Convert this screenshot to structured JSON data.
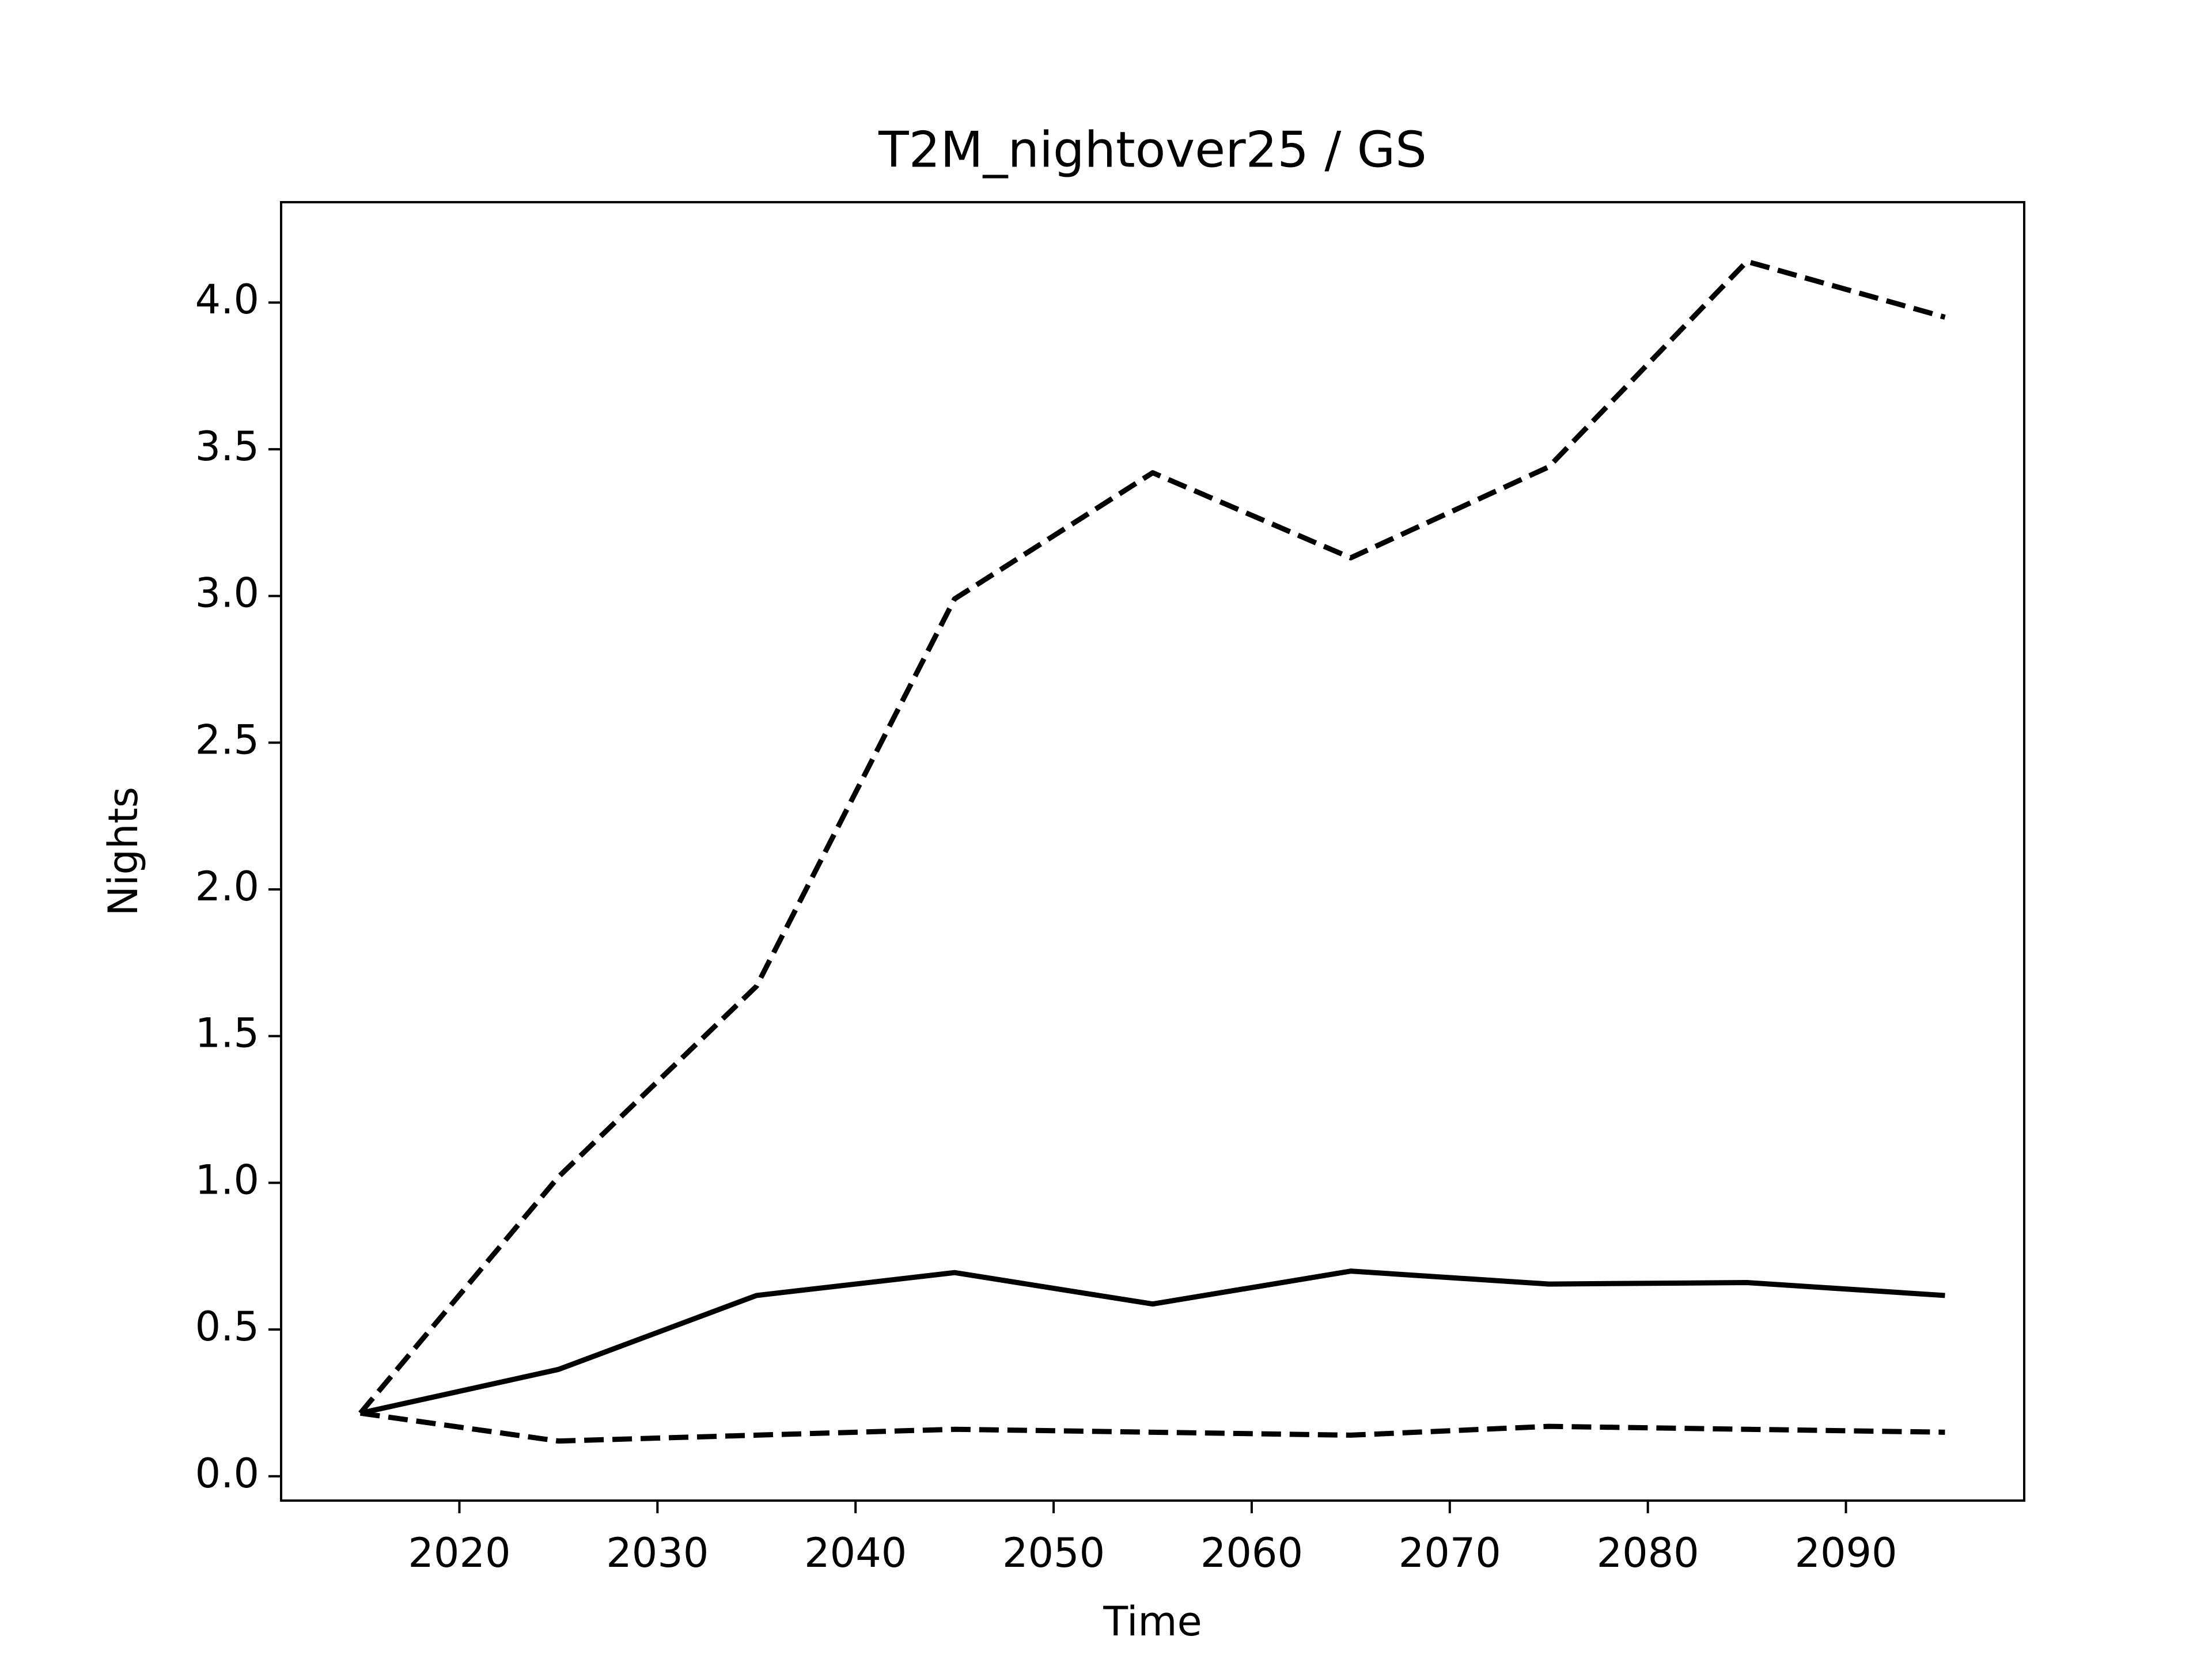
{
  "chart_data": {
    "type": "line",
    "title": "T2M_nightover25 / GS",
    "xlabel": "Time",
    "ylabel": "Nights",
    "x": [
      2015,
      2025,
      2035,
      2045,
      2055,
      2065,
      2075,
      2085,
      2095
    ],
    "series": [
      {
        "color": "#000000",
        "dashed": false,
        "values": [
          0.215,
          0.364,
          0.616,
          0.694,
          0.587,
          0.699,
          0.655,
          0.66,
          0.616
        ]
      },
      {
        "color": "#000000",
        "dashed": true,
        "values": [
          0.215,
          1.02,
          1.67,
          2.99,
          3.42,
          3.13,
          3.44,
          4.14,
          3.95
        ]
      },
      {
        "color": "#000000",
        "dashed": true,
        "values": [
          0.215,
          0.12,
          0.14,
          0.16,
          0.15,
          0.14,
          0.17,
          0.16,
          0.15
        ]
      }
    ],
    "xlim": [
      2011,
      2099
    ],
    "xticks": [
      2020,
      2030,
      2040,
      2050,
      2060,
      2070,
      2080,
      2090
    ],
    "ylim": [
      -0.083,
      4.342
    ],
    "yticks": [
      {
        "value": 0,
        "label": "0.0"
      },
      0.5,
      {
        "value": 1,
        "label": "1.0"
      },
      1.5,
      {
        "value": 2,
        "label": "2.0"
      },
      2.5,
      {
        "value": 3,
        "label": "3.0"
      },
      3.5,
      {
        "value": 4,
        "label": "4.0"
      }
    ],
    "grid": false
  }
}
